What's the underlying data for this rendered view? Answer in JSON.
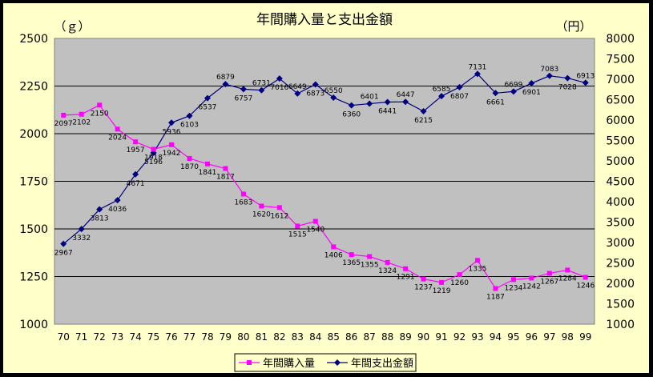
{
  "chart_data": {
    "type": "line",
    "title": "年間購入量と支出金額",
    "ylabel_left": "（ｇ）",
    "ylabel_right": "（円）",
    "categories": [
      "70",
      "71",
      "72",
      "73",
      "74",
      "75",
      "76",
      "77",
      "78",
      "79",
      "80",
      "81",
      "82",
      "83",
      "84",
      "85",
      "86",
      "87",
      "88",
      "89",
      "90",
      "91",
      "92",
      "93",
      "94",
      "95",
      "96",
      "97",
      "98",
      "99"
    ],
    "y_left": {
      "min": 1000,
      "max": 2500,
      "ticks": [
        1000,
        1250,
        1500,
        1750,
        2000,
        2250,
        2500
      ]
    },
    "y_right": {
      "min": 1000,
      "max": 8000,
      "ticks": [
        1000,
        1500,
        2000,
        2500,
        3000,
        3500,
        4000,
        4500,
        5000,
        5500,
        6000,
        6500,
        7000,
        7500,
        8000
      ]
    },
    "grid": "horizontal",
    "legend_position": "bottom-center",
    "series": [
      {
        "name": "年間購入量",
        "axis": "left",
        "color": "#ff00ff",
        "marker": "square",
        "values": [
          2097,
          2102,
          2150,
          2024,
          1957,
          1918,
          1942,
          1870,
          1841,
          1817,
          1683,
          1620,
          1612,
          1515,
          1540,
          1406,
          1365,
          1355,
          1324,
          1291,
          1237,
          1219,
          1260,
          1335,
          1187,
          1234,
          1242,
          1267,
          1284,
          1246
        ]
      },
      {
        "name": "年間支出金額",
        "axis": "right",
        "color": "#000080",
        "marker": "diamond",
        "values": [
          2967,
          3332,
          3813,
          4036,
          4671,
          5196,
          5936,
          6103,
          6537,
          6879,
          6757,
          6731,
          7016,
          6649,
          6873,
          6550,
          6360,
          6401,
          6441,
          6447,
          6215,
          6585,
          6807,
          7131,
          6661,
          6699,
          6901,
          7083,
          7028,
          6913
        ]
      }
    ]
  }
}
